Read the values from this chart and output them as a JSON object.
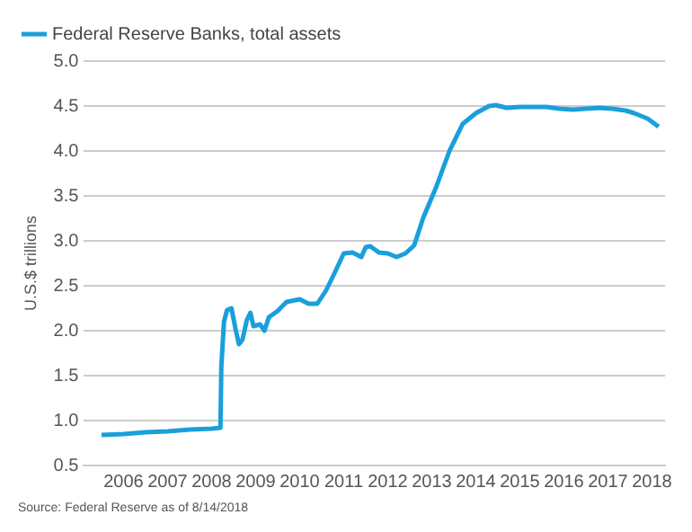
{
  "chart_data": {
    "type": "line",
    "ylabel": "U.S.$ trillions",
    "legend": "top left",
    "grid": "y",
    "marker": "none",
    "line_style": "solid",
    "annotations": [
      "Source: Federal Reserve as of 8/14/2018"
    ],
    "xlim": [
      2005.6,
      2018.8
    ],
    "xticks": [
      {
        "value": 2006.5,
        "label": "2006"
      },
      {
        "value": 2007.5,
        "label": "2007"
      },
      {
        "value": 2008.5,
        "label": "2008"
      },
      {
        "value": 2009.5,
        "label": "2009"
      },
      {
        "value": 2010.5,
        "label": "2010"
      },
      {
        "value": 2011.5,
        "label": "2011"
      },
      {
        "value": 2012.5,
        "label": "2012"
      },
      {
        "value": 2013.5,
        "label": "2013"
      },
      {
        "value": 2014.5,
        "label": "2014"
      },
      {
        "value": 2015.5,
        "label": "2015"
      },
      {
        "value": 2016.5,
        "label": "2016"
      },
      {
        "value": 2017.5,
        "label": "2017"
      },
      {
        "value": 2018.5,
        "label": "2018"
      }
    ],
    "ylim": [
      0.5,
      5.0
    ],
    "yticks": [
      {
        "value": 0.5,
        "label": "0.5"
      },
      {
        "value": 1.0,
        "label": "1.0"
      },
      {
        "value": 1.5,
        "label": "1.5"
      },
      {
        "value": 2.0,
        "label": "2.0"
      },
      {
        "value": 2.5,
        "label": "2.5"
      },
      {
        "value": 3.0,
        "label": "3.0"
      },
      {
        "value": 3.5,
        "label": "3.5"
      },
      {
        "value": 4.0,
        "label": "4.0"
      },
      {
        "value": 4.5,
        "label": "4.5"
      },
      {
        "value": 5.0,
        "label": "5.0"
      }
    ],
    "x": [
      2006.0,
      2006.5,
      2007.0,
      2007.5,
      2008.0,
      2008.5,
      2008.7,
      2008.72,
      2008.78,
      2008.85,
      2008.95,
      2009.05,
      2009.12,
      2009.2,
      2009.3,
      2009.38,
      2009.45,
      2009.6,
      2009.7,
      2009.8,
      2010.0,
      2010.2,
      2010.5,
      2010.7,
      2010.9,
      2011.1,
      2011.3,
      2011.5,
      2011.7,
      2011.9,
      2012.0,
      2012.1,
      2012.3,
      2012.5,
      2012.7,
      2012.9,
      2013.1,
      2013.3,
      2013.6,
      2013.9,
      2014.2,
      2014.5,
      2014.8,
      2014.95,
      2015.2,
      2015.5,
      2015.8,
      2016.1,
      2016.4,
      2016.7,
      2017.0,
      2017.3,
      2017.6,
      2017.9,
      2018.1,
      2018.4,
      2018.65
    ],
    "series": [
      {
        "name": "Federal Reserve Banks, total assets",
        "color": "#1a9fdc",
        "values": [
          0.84,
          0.85,
          0.87,
          0.88,
          0.9,
          0.91,
          0.92,
          1.6,
          2.1,
          2.23,
          2.25,
          2.0,
          1.85,
          1.9,
          2.12,
          2.2,
          2.05,
          2.07,
          2.0,
          2.15,
          2.22,
          2.32,
          2.35,
          2.3,
          2.3,
          2.45,
          2.65,
          2.86,
          2.87,
          2.82,
          2.93,
          2.94,
          2.87,
          2.86,
          2.82,
          2.86,
          2.95,
          3.25,
          3.6,
          4.0,
          4.3,
          4.42,
          4.5,
          4.51,
          4.48,
          4.49,
          4.49,
          4.49,
          4.47,
          4.46,
          4.47,
          4.48,
          4.47,
          4.45,
          4.42,
          4.36,
          4.27
        ]
      }
    ]
  }
}
